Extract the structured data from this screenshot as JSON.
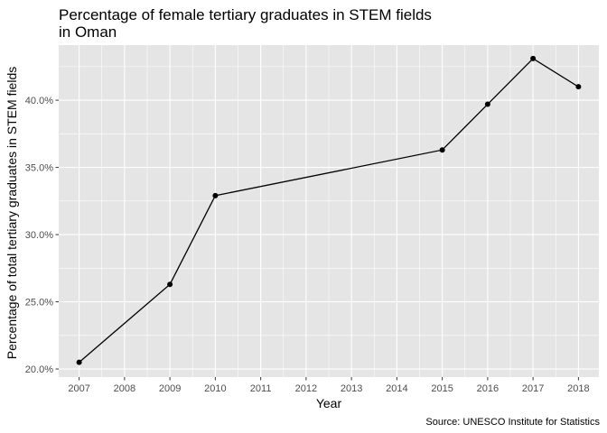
{
  "chart_data": {
    "type": "line",
    "title": "Percentage of female tertiary graduates in STEM fields",
    "subtitle": "in Oman",
    "xlabel": "Year",
    "ylabel": "Percentage of total tertiary graduates in STEM fields",
    "caption": "Source: UNESCO Institute for Statistics",
    "x_ticks": [
      "2007",
      "2008",
      "2009",
      "2010",
      "2011",
      "2012",
      "2013",
      "2014",
      "2015",
      "2016",
      "2017",
      "2018"
    ],
    "y_ticks": [
      "20.0%",
      "25.0%",
      "30.0%",
      "35.0%",
      "40.0%"
    ],
    "xlim": [
      2006.55,
      2018.45
    ],
    "ylim": [
      19.4,
      44.1
    ],
    "grid": true,
    "series": [
      {
        "x": [
          2007,
          2009,
          2010,
          2015,
          2016,
          2017,
          2018
        ],
        "y": [
          20.5,
          26.3,
          32.9,
          36.3,
          39.7,
          43.1,
          41.0
        ]
      }
    ],
    "colors": {
      "panel": "#e5e5e5",
      "grid": "#ffffff",
      "line": "#000000",
      "point": "#000000"
    }
  }
}
